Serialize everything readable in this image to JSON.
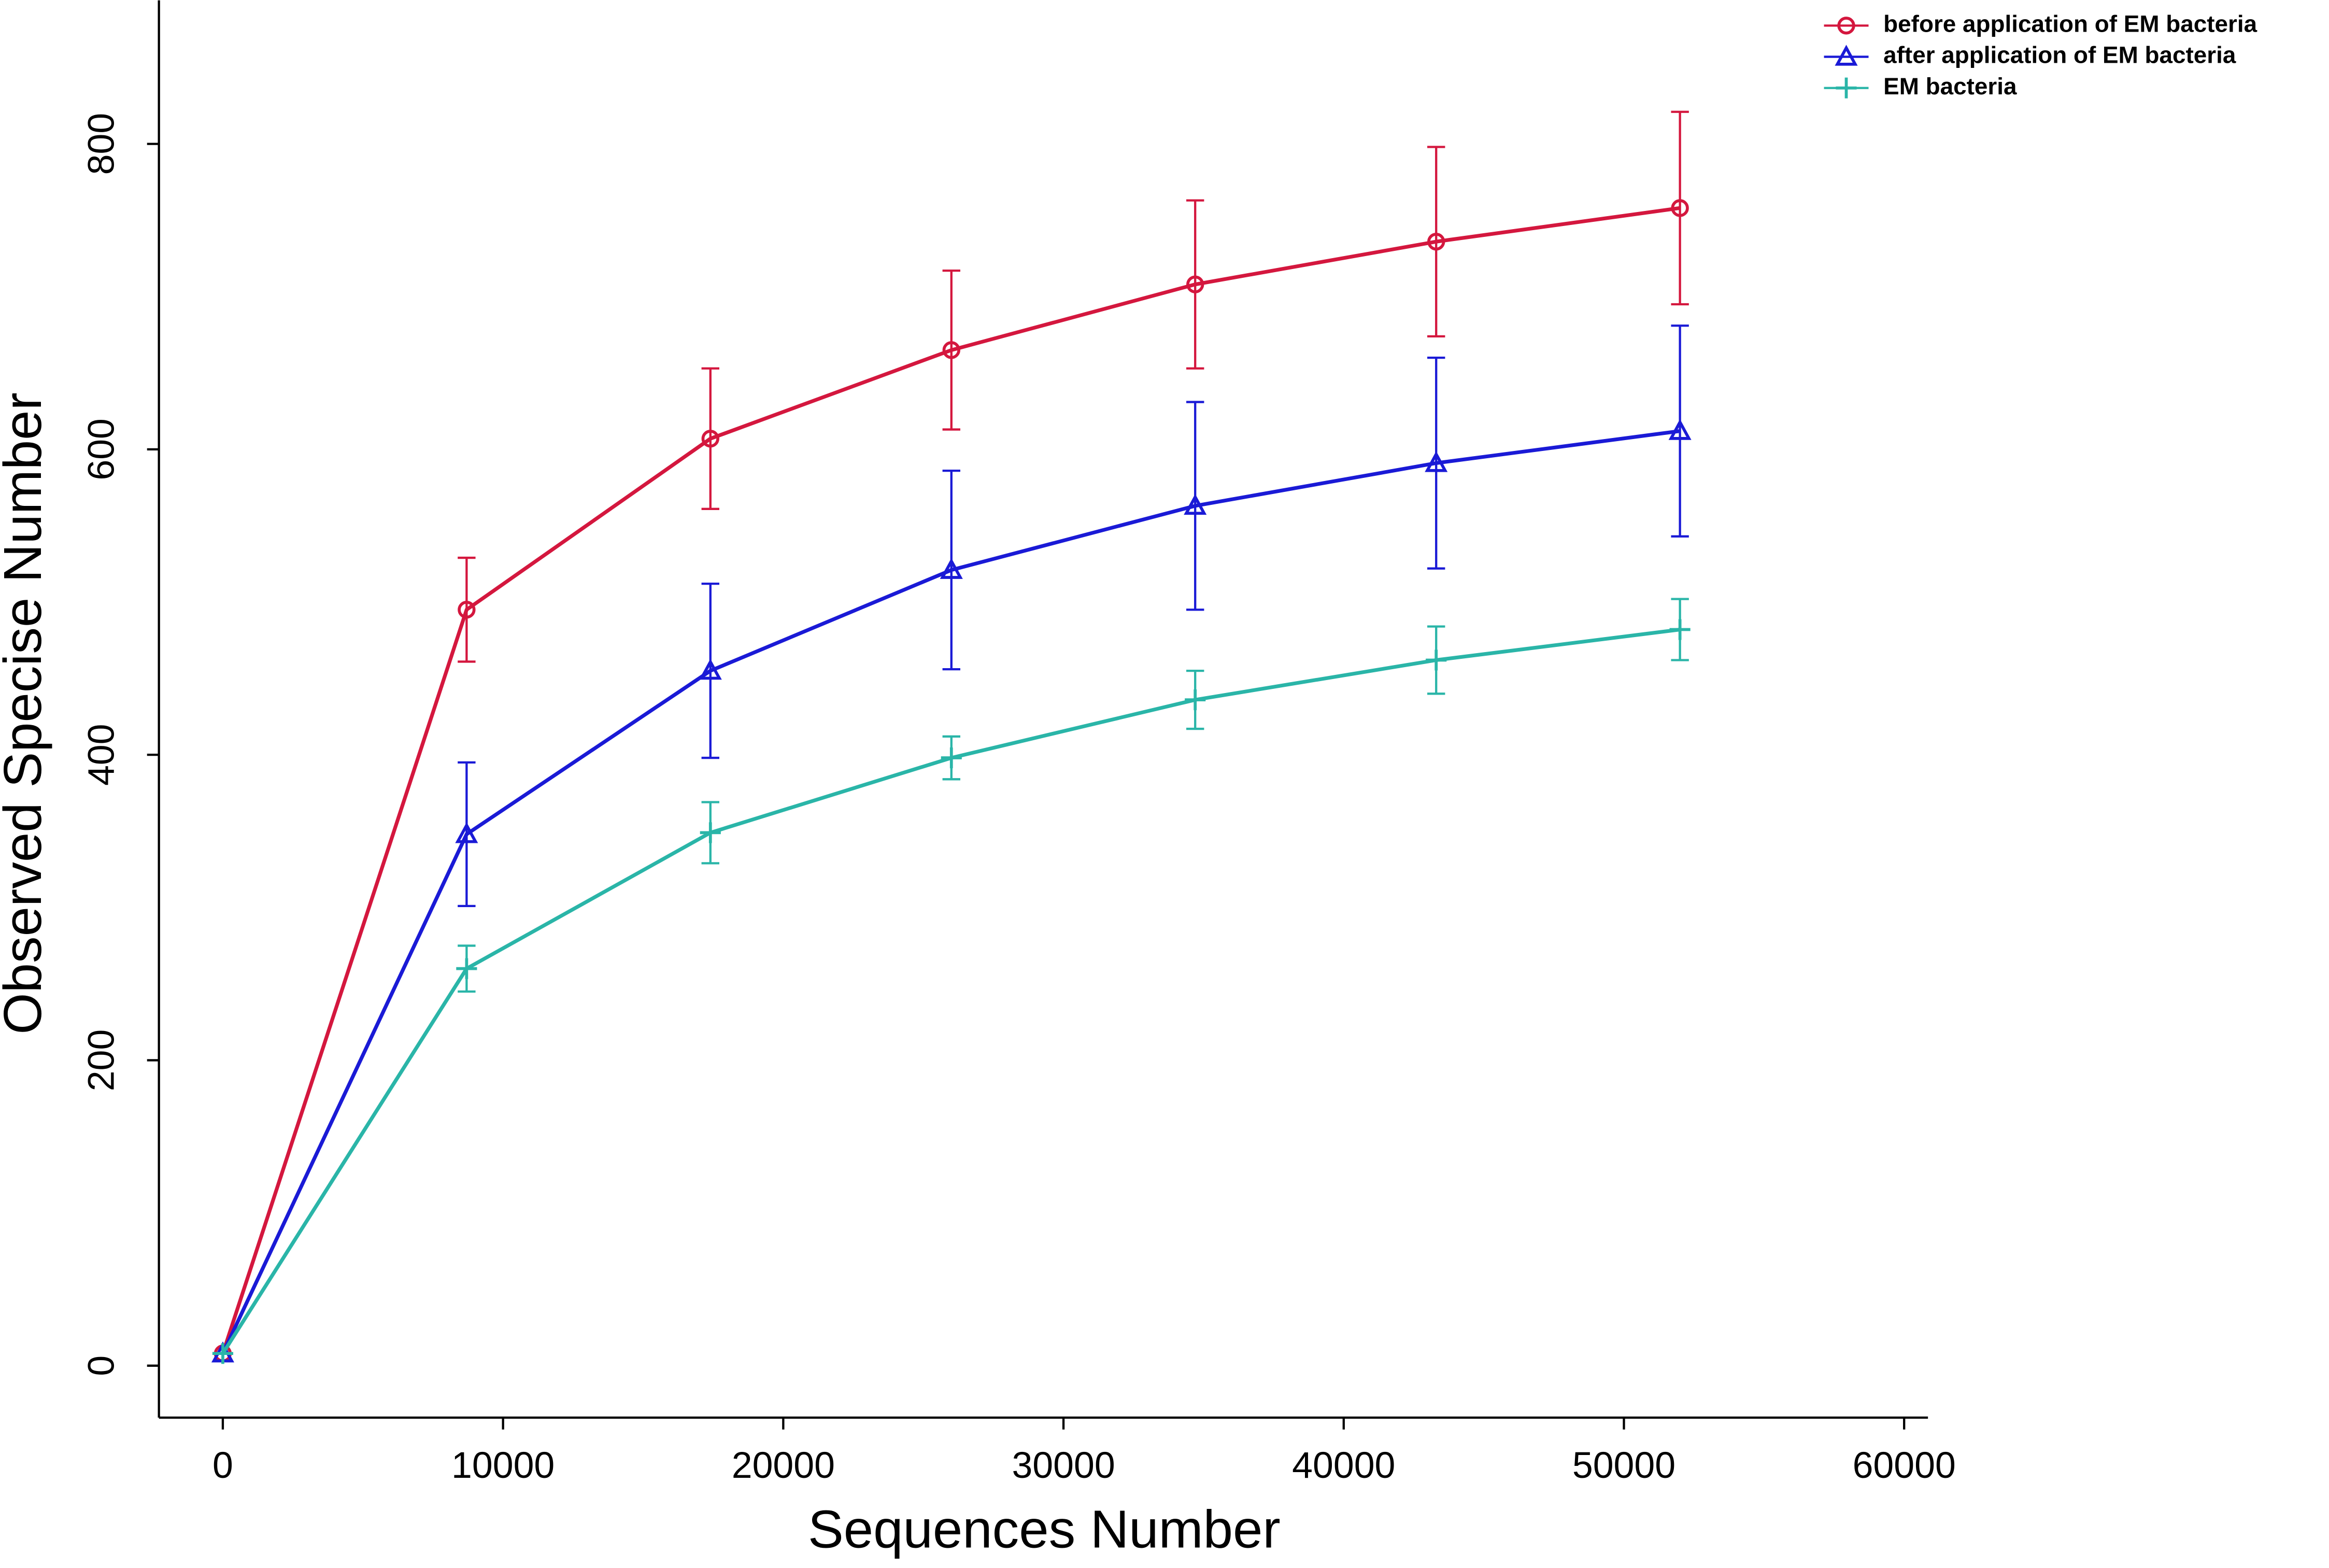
{
  "chart_data": {
    "type": "line",
    "x_label": "Sequences Number",
    "y_label": "Observed Specise Number",
    "x": [
      0,
      8700,
      17400,
      26000,
      34700,
      43300,
      52000
    ],
    "series": [
      {
        "name": "before application of EM bacteria",
        "color": "#d4173e",
        "marker": "circle",
        "values": [
          8,
          495,
          607,
          665,
          708,
          736,
          758
        ],
        "errors": [
          0,
          34,
          46,
          52,
          55,
          62,
          63
        ]
      },
      {
        "name": "after application of EM bacteria",
        "color": "#1a1ad6",
        "marker": "triangle",
        "values": [
          8,
          348,
          455,
          521,
          563,
          591,
          612
        ],
        "errors": [
          0,
          47,
          57,
          65,
          68,
          69,
          69
        ]
      },
      {
        "name": "EM bacteria",
        "color": "#2ab5a8",
        "marker": "plus",
        "values": [
          8,
          260,
          349,
          398,
          436,
          462,
          482
        ],
        "errors": [
          0,
          15,
          20,
          14,
          19,
          22,
          20
        ]
      }
    ],
    "xlim": [
      -2280,
      60850
    ],
    "ylim": [
      -34,
      894
    ],
    "xticks": [
      0,
      10000,
      20000,
      30000,
      40000,
      50000,
      60000
    ],
    "yticks": [
      0,
      200,
      400,
      600,
      800
    ],
    "legend": "top-right"
  }
}
